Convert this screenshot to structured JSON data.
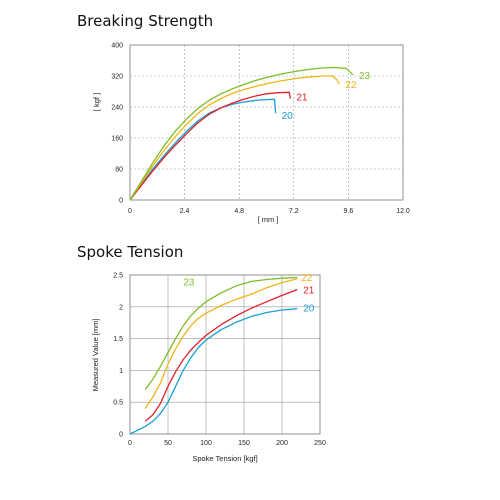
{
  "chart_data": [
    {
      "type": "line",
      "title": "Breaking Strength",
      "xlabel": "[ mm ]",
      "ylabel": "[ kgf ]",
      "xlim": [
        0,
        12
      ],
      "ylim": [
        0,
        400
      ],
      "xticks": [
        0,
        2.4,
        4.8,
        7.2,
        9.6,
        12.0
      ],
      "xtick_labels": [
        "0",
        "2.4",
        "4.8",
        "7.2",
        "9.6",
        "12.0"
      ],
      "yticks": [
        0,
        80,
        160,
        240,
        320,
        400
      ],
      "ytick_labels": [
        "0",
        "80",
        "160",
        "240",
        "320",
        "400"
      ],
      "grid": true,
      "series": [
        {
          "name": "20",
          "color": "#1a9fd6",
          "x": [
            0,
            0.5,
            1,
            1.5,
            2,
            2.5,
            3,
            3.5,
            4,
            4.5,
            5,
            5.5,
            6.0,
            6.35,
            6.4
          ],
          "y": [
            0,
            40,
            80,
            115,
            148,
            178,
            205,
            225,
            238,
            247,
            253,
            257,
            259,
            260,
            224
          ]
        },
        {
          "name": "21",
          "color": "#e0202a",
          "x": [
            0,
            0.5,
            1,
            1.5,
            2,
            2.5,
            3,
            3.5,
            4,
            4.5,
            5,
            5.5,
            6,
            6.5,
            7.0,
            7.05
          ],
          "y": [
            0,
            38,
            75,
            110,
            142,
            172,
            200,
            222,
            238,
            250,
            260,
            268,
            274,
            277,
            278,
            262
          ]
        },
        {
          "name": "22",
          "color": "#f2b418",
          "x": [
            0,
            0.5,
            1,
            1.5,
            2,
            2.5,
            3,
            3.5,
            4,
            4.5,
            5,
            5.5,
            6,
            6.5,
            7,
            7.5,
            8,
            8.5,
            8.9,
            9.1,
            9.2
          ],
          "y": [
            0,
            44,
            88,
            128,
            164,
            196,
            224,
            246,
            262,
            275,
            285,
            293,
            300,
            306,
            311,
            315,
            318,
            320,
            320,
            310,
            300
          ]
        },
        {
          "name": "23",
          "color": "#7cbd28",
          "x": [
            0,
            0.5,
            1,
            1.5,
            2,
            2.5,
            3,
            3.5,
            4,
            4.5,
            5,
            5.5,
            6,
            6.5,
            7,
            7.5,
            8,
            8.5,
            9,
            9.5,
            9.8
          ],
          "y": [
            0,
            48,
            96,
            140,
            178,
            210,
            237,
            258,
            274,
            287,
            298,
            308,
            316,
            323,
            329,
            334,
            338,
            341,
            342,
            340,
            323
          ]
        }
      ]
    },
    {
      "type": "line",
      "title": "Spoke Tension",
      "xlabel": "Spoke Tension [kgf]",
      "ylabel": "Measured Value [mm]",
      "xlim": [
        0,
        250
      ],
      "ylim": [
        0,
        2.5
      ],
      "xticks": [
        0,
        50,
        100,
        150,
        200,
        250
      ],
      "xtick_labels": [
        "0",
        "50",
        "100",
        "150",
        "200",
        "250"
      ],
      "yticks": [
        0,
        0.5,
        1,
        1.5,
        2,
        2.5
      ],
      "ytick_labels": [
        "0",
        "0.5",
        "1",
        "1.5",
        "2",
        "2.5"
      ],
      "grid": true,
      "series": [
        {
          "name": "20",
          "color": "#1a9fd6",
          "x": [
            0,
            20,
            30,
            40,
            50,
            60,
            70,
            80,
            90,
            100,
            120,
            140,
            160,
            180,
            200,
            220
          ],
          "y": [
            0.0,
            0.12,
            0.2,
            0.32,
            0.5,
            0.75,
            1.0,
            1.2,
            1.36,
            1.48,
            1.64,
            1.76,
            1.85,
            1.91,
            1.95,
            1.97
          ]
        },
        {
          "name": "21",
          "color": "#e0202a",
          "x": [
            20,
            30,
            40,
            50,
            60,
            70,
            80,
            90,
            100,
            120,
            140,
            160,
            180,
            200,
            220
          ],
          "y": [
            0.2,
            0.3,
            0.48,
            0.75,
            0.98,
            1.17,
            1.32,
            1.44,
            1.55,
            1.72,
            1.86,
            1.98,
            2.08,
            2.18,
            2.27
          ]
        },
        {
          "name": "22",
          "color": "#f2b418",
          "x": [
            20,
            30,
            40,
            50,
            60,
            70,
            80,
            90,
            100,
            120,
            140,
            160,
            180,
            200,
            220
          ],
          "y": [
            0.4,
            0.58,
            0.8,
            1.1,
            1.34,
            1.54,
            1.7,
            1.82,
            1.9,
            2.02,
            2.12,
            2.2,
            2.3,
            2.38,
            2.44
          ]
        },
        {
          "name": "23",
          "color": "#7cbd28",
          "x": [
            20,
            30,
            40,
            50,
            60,
            70,
            80,
            90,
            100,
            120,
            140,
            160,
            180,
            200,
            220
          ],
          "y": [
            0.7,
            0.86,
            1.06,
            1.28,
            1.5,
            1.7,
            1.86,
            1.98,
            2.08,
            2.22,
            2.33,
            2.4,
            2.43,
            2.45,
            2.46
          ]
        }
      ]
    }
  ]
}
